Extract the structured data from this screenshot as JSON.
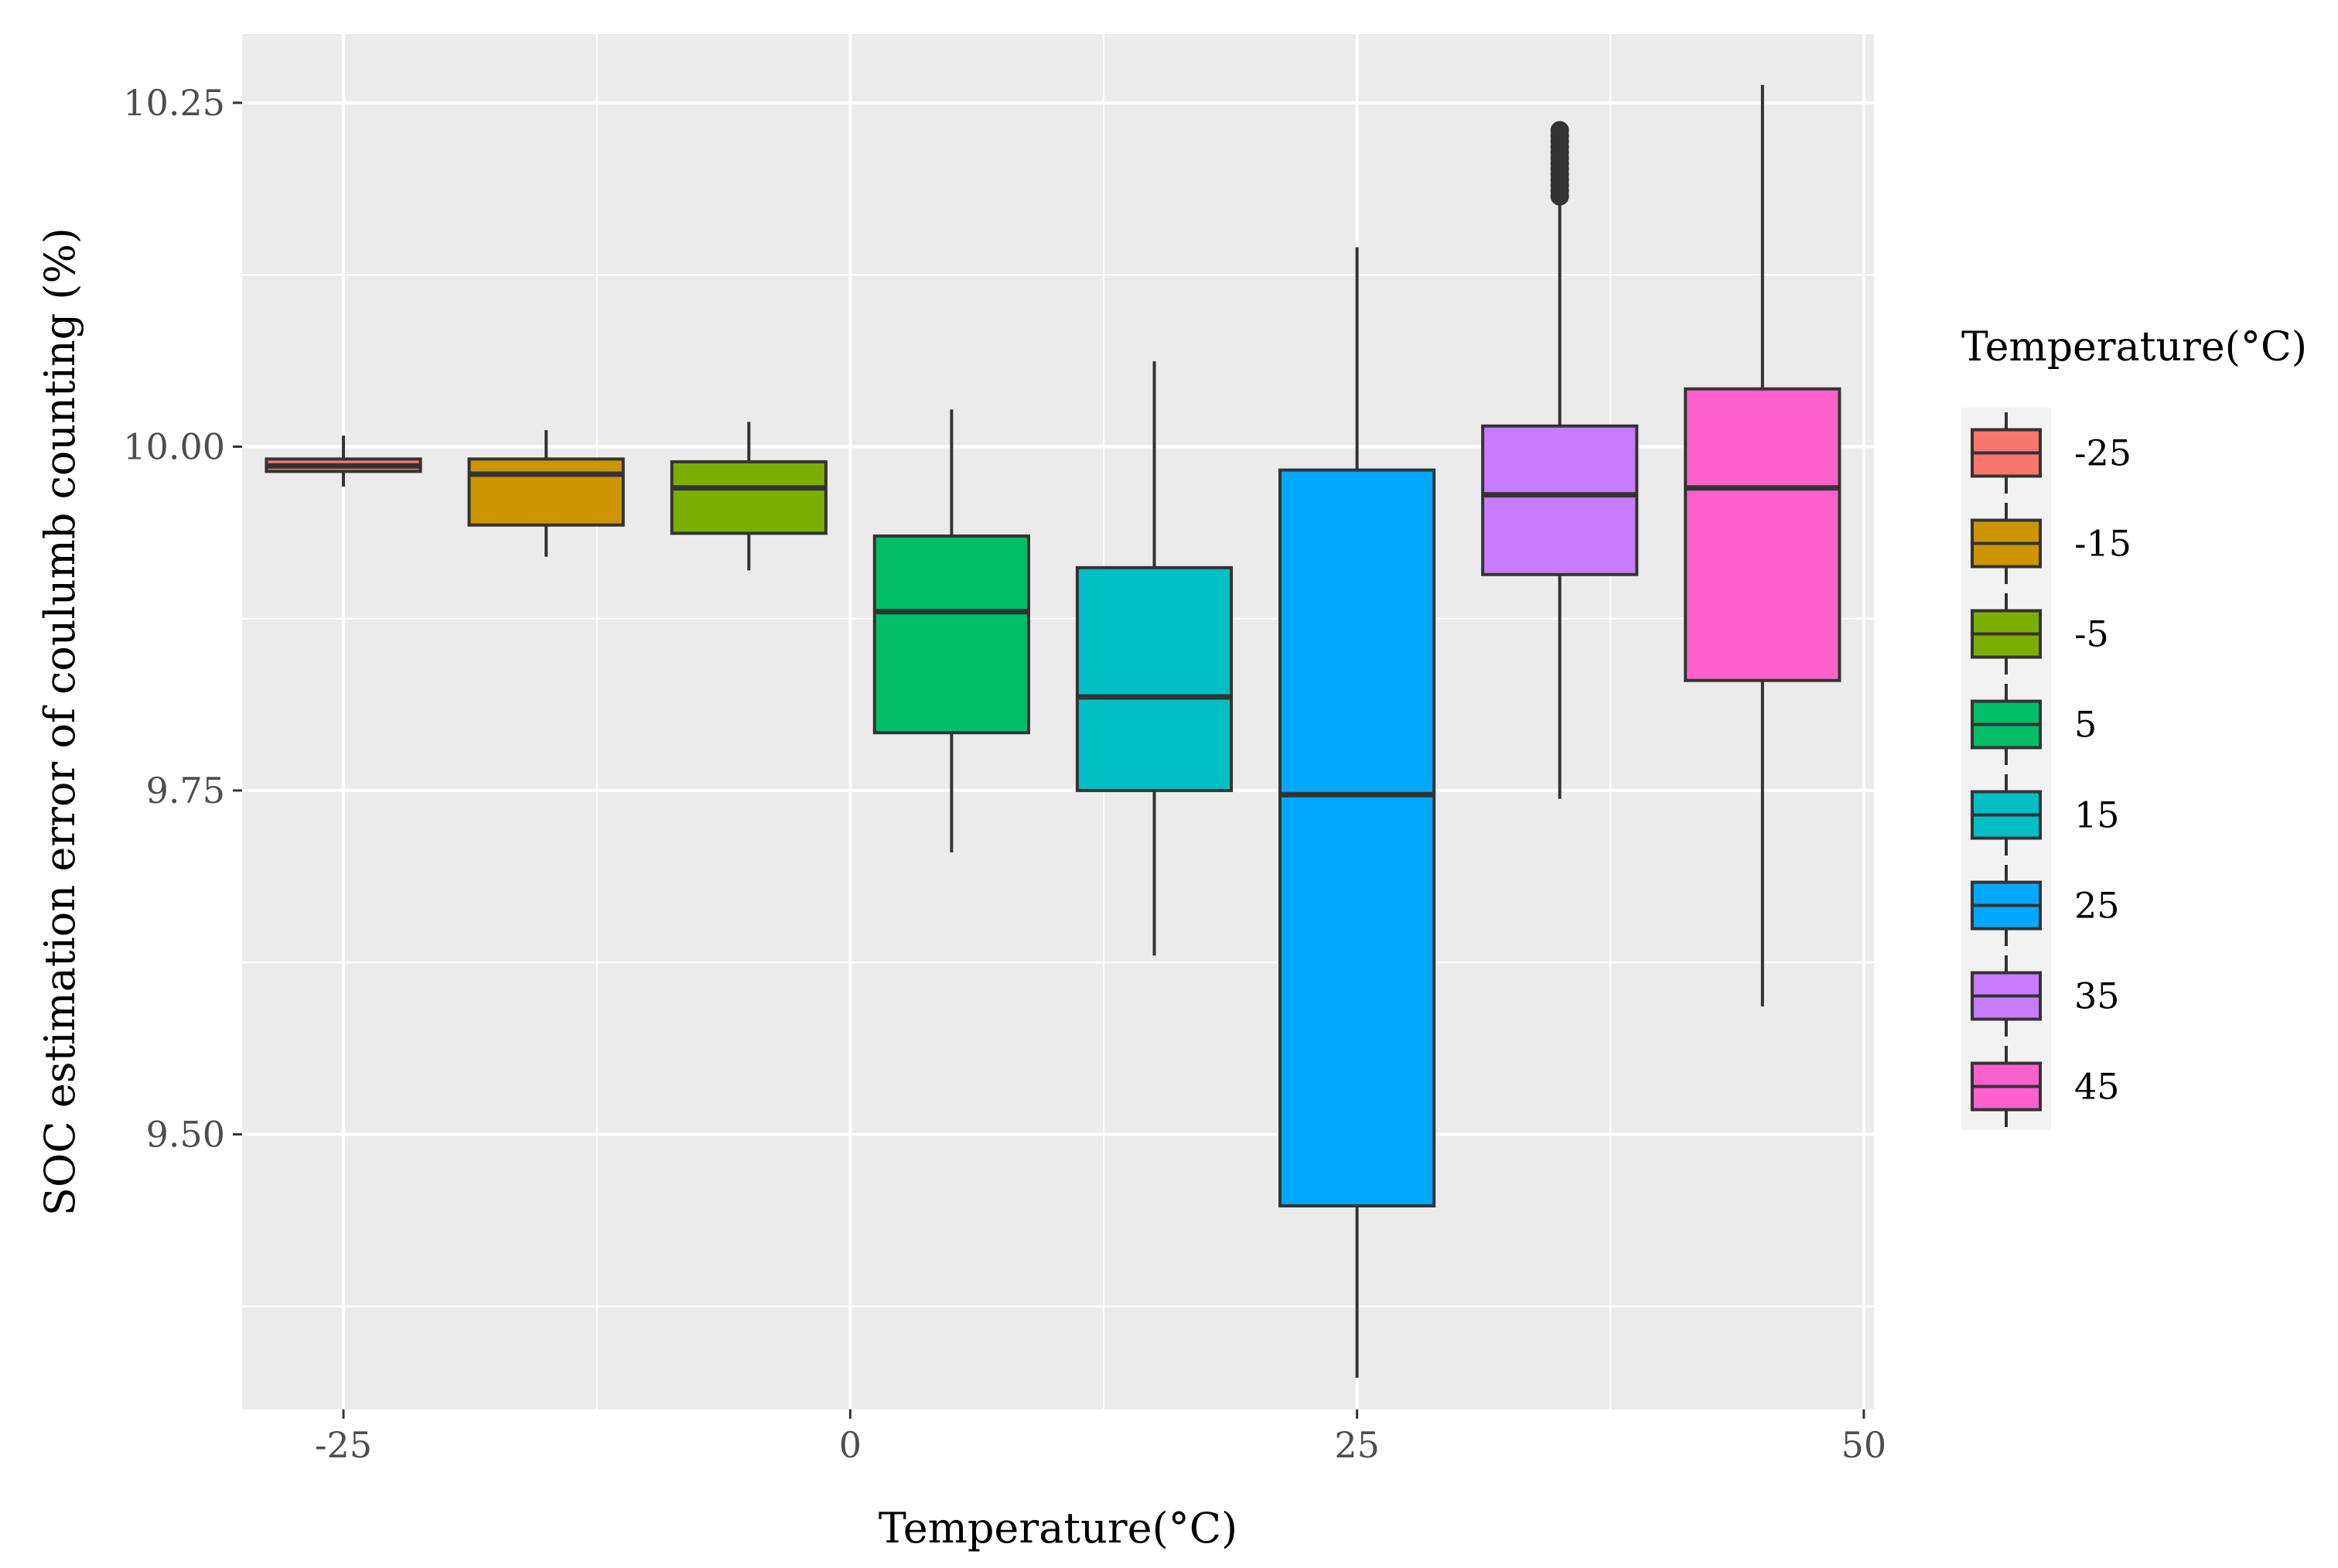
{
  "chart_data": {
    "type": "boxplot",
    "title": "",
    "xlabel": "Temperature(°C)",
    "ylabel": "SOC estimation error of coulumb counting (%)",
    "xlim": [
      -30,
      50.5
    ],
    "ylim": [
      9.3,
      10.3
    ],
    "x_ticks": [
      -25,
      0,
      25,
      50
    ],
    "x_tick_labels": [
      "-25",
      "0",
      "25",
      "50"
    ],
    "y_ticks": [
      9.5,
      9.75,
      10.0,
      10.25
    ],
    "y_tick_labels": [
      "9.50",
      "9.75",
      "10.00",
      "10.25"
    ],
    "grid": true,
    "legend": {
      "title": "Temperature(°C)",
      "position": "right",
      "entries": [
        "-25",
        "-15",
        "-5",
        "5",
        "15",
        "25",
        "35",
        "45"
      ]
    },
    "series": [
      {
        "name": "-25",
        "x": -25,
        "whisker_low": 9.971,
        "q1": 9.982,
        "median": 9.986,
        "q3": 9.991,
        "whisker_high": 10.008,
        "outliers": [],
        "color": "#F8766D"
      },
      {
        "name": "-15",
        "x": -15,
        "whisker_low": 9.92,
        "q1": 9.943,
        "median": 9.98,
        "q3": 9.991,
        "whisker_high": 10.012,
        "outliers": [],
        "color": "#CD9600"
      },
      {
        "name": "-5",
        "x": -5,
        "whisker_low": 9.91,
        "q1": 9.937,
        "median": 9.97,
        "q3": 9.989,
        "whisker_high": 10.018,
        "outliers": [],
        "color": "#7CAE00"
      },
      {
        "name": "5",
        "x": 5,
        "whisker_low": 9.705,
        "q1": 9.792,
        "median": 9.88,
        "q3": 9.935,
        "whisker_high": 10.027,
        "outliers": [],
        "color": "#00BE67"
      },
      {
        "name": "15",
        "x": 15,
        "whisker_low": 9.63,
        "q1": 9.75,
        "median": 9.818,
        "q3": 9.912,
        "whisker_high": 10.062,
        "outliers": [],
        "color": "#00BFC4"
      },
      {
        "name": "25",
        "x": 25,
        "whisker_low": 9.323,
        "q1": 9.448,
        "median": 9.747,
        "q3": 9.983,
        "whisker_high": 10.145,
        "outliers": [],
        "color": "#00A9FF"
      },
      {
        "name": "35",
        "x": 35,
        "whisker_low": 9.744,
        "q1": 9.907,
        "median": 9.965,
        "q3": 10.015,
        "whisker_high": 10.178,
        "outliers": [
          10.182,
          10.186,
          10.19,
          10.194,
          10.198,
          10.202,
          10.206,
          10.21,
          10.214,
          10.218,
          10.222,
          10.226,
          10.23
        ],
        "color": "#C77CFF"
      },
      {
        "name": "45",
        "x": 45,
        "whisker_low": 9.593,
        "q1": 9.83,
        "median": 9.97,
        "q3": 10.042,
        "whisker_high": 10.263,
        "outliers": [],
        "color": "#FF61CC"
      }
    ]
  }
}
